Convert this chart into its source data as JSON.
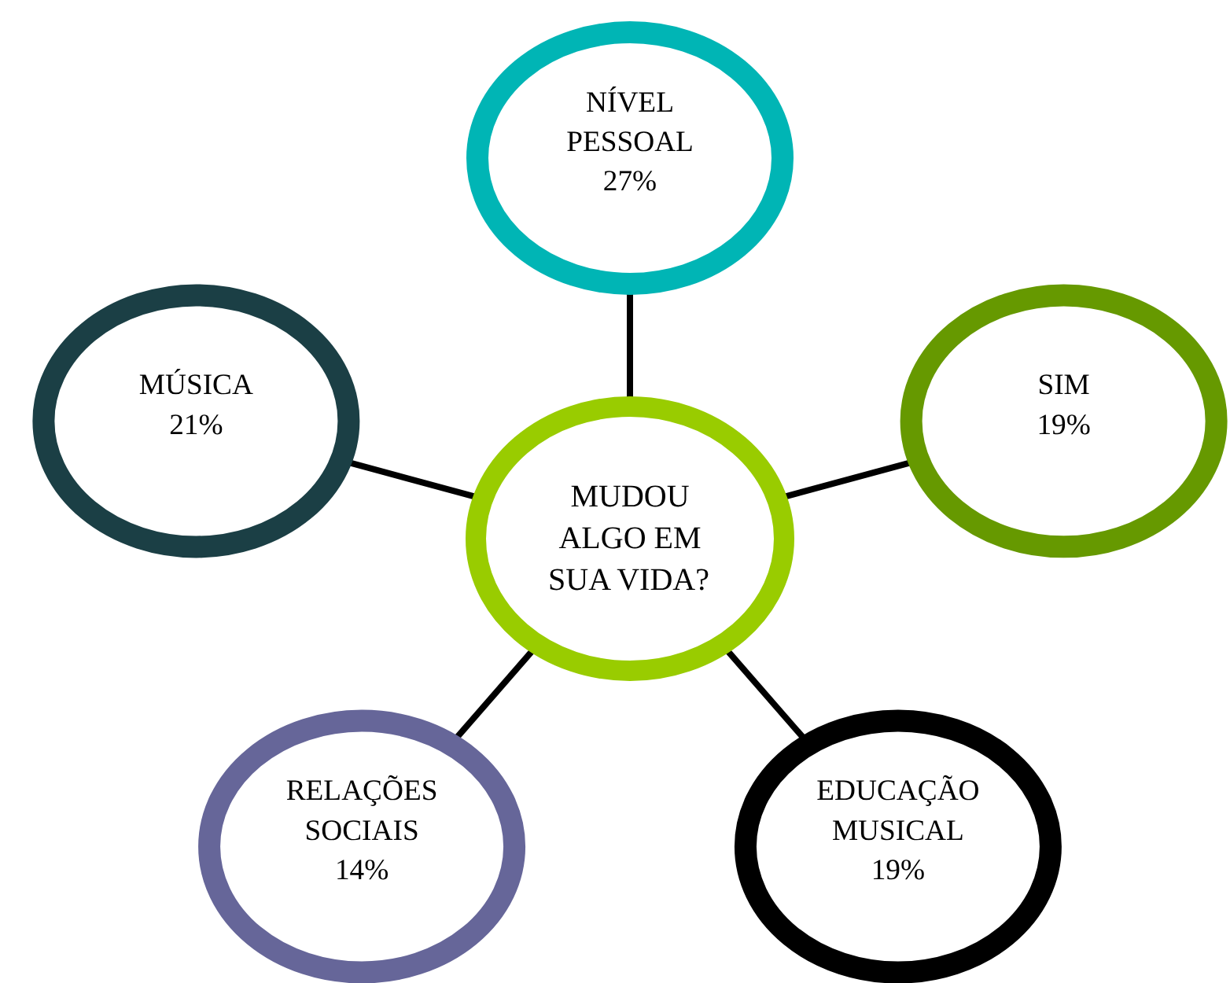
{
  "chart_data": {
    "type": "other",
    "title": "MUDOU\nALGO EM\nSUA VIDA?",
    "categories": [
      "NÍVEL\nPESSOAL",
      "SIM",
      "EDUCAÇÃO\nMUSICAL",
      "RELAÇÕES\nSOCIAIS",
      "MÚSICA"
    ],
    "values": [
      27,
      19,
      19,
      14,
      21
    ],
    "value_labels": [
      "27%",
      "19%",
      "19%",
      "14%",
      "21%"
    ],
    "colors": [
      "#00b5b5",
      "#669900",
      "#000000",
      "#666699",
      "#1b3f45"
    ]
  }
}
